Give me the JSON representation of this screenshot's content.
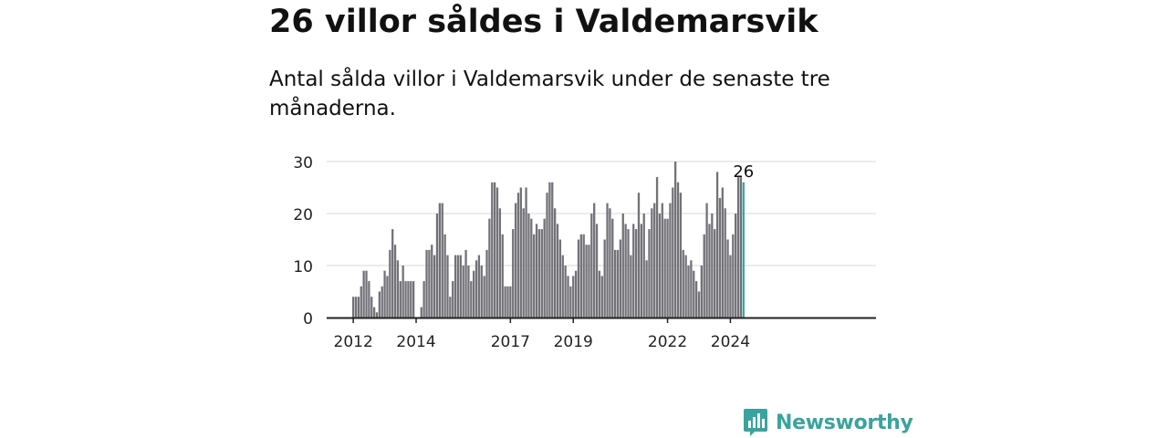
{
  "header": {
    "title": "26 villor såldes i Valdemarsvik",
    "subtitle": "Antal sålda villor i Valdemarsvik under de senaste tre månaderna."
  },
  "brand": {
    "name": "Newsworthy",
    "icon": "newsworthy-logo-icon",
    "color": "#3aa39d"
  },
  "chart_data": {
    "type": "bar",
    "start": "2012-01",
    "frequency": "monthly",
    "values": [
      4,
      4,
      4,
      6,
      9,
      9,
      7,
      4,
      2,
      1,
      5,
      6,
      9,
      8,
      13,
      17,
      14,
      11,
      7,
      10,
      7,
      7,
      7,
      7,
      0,
      0,
      2,
      7,
      13,
      13,
      14,
      12,
      20,
      22,
      22,
      16,
      12,
      4,
      7,
      12,
      12,
      12,
      10,
      13,
      10,
      7,
      9,
      11,
      12,
      10,
      8,
      13,
      19,
      26,
      26,
      25,
      21,
      16,
      6,
      6,
      6,
      17,
      22,
      24,
      25,
      21,
      25,
      20,
      19,
      16,
      18,
      17,
      17,
      19,
      24,
      26,
      26,
      21,
      18,
      15,
      12,
      10,
      8,
      6,
      8,
      9,
      15,
      16,
      16,
      14,
      14,
      20,
      22,
      18,
      9,
      8,
      15,
      22,
      21,
      19,
      13,
      13,
      15,
      20,
      18,
      17,
      12,
      18,
      17,
      24,
      18,
      20,
      11,
      17,
      21,
      22,
      27,
      20,
      22,
      19,
      19,
      22,
      25,
      30,
      26,
      24,
      13,
      12,
      10,
      11,
      9,
      7,
      5,
      10,
      16,
      22,
      18,
      20,
      17,
      28,
      23,
      25,
      21,
      15,
      12,
      16,
      20,
      27,
      27,
      26
    ],
    "highlight_last": true,
    "highlight_label": "26",
    "x_ticks": [
      "2012",
      "2014",
      "2017",
      "2019",
      "2022",
      "2024"
    ],
    "y_ticks": [
      0,
      10,
      20,
      30
    ],
    "ylim": [
      0,
      30
    ],
    "bar_color": "#737278",
    "highlight_color": "#3aa39d",
    "axis_color": "#222222",
    "grid_color": "#d8d8d8",
    "grid": true,
    "title": "",
    "xlabel": "",
    "ylabel": ""
  }
}
